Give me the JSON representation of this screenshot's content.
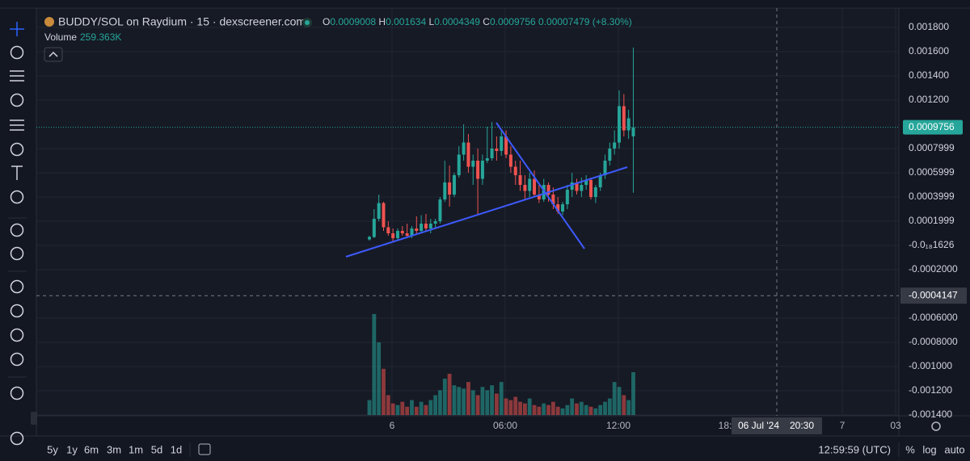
{
  "chart_data": {
    "type": "candlestick",
    "title": "BUDDY/SOL on Raydium · 15 · dexscreener.com",
    "legend_labels": [
      "O",
      "H",
      "L",
      "C"
    ],
    "change": 7.479e-05,
    "change_pct": {
      "value": 8.3,
      "label": "(+8.30%)"
    },
    "up_color": "#26a69a",
    "down_color": "#ef5350",
    "ylim": [
      -0.0014,
      0.0019
    ],
    "yticks": [
      {
        "value": 0.0018,
        "label": "0.001800"
      },
      {
        "value": 0.0016,
        "label": "0.001600"
      },
      {
        "value": 0.0014,
        "label": "0.001400"
      },
      {
        "value": 0.0012,
        "label": "0.001200"
      },
      {
        "value": 0.0007999,
        "label": "0.0007999"
      },
      {
        "value": 0.0005999,
        "label": "0.0005999"
      },
      {
        "value": 0.0003999,
        "label": "0.0003999"
      },
      {
        "value": 0.0001999,
        "label": "0.0001999"
      },
      {
        "value": -1.626e-19,
        "label": "-0.0₁₈1626"
      },
      {
        "value": -0.0002,
        "label": "-0.0002000"
      },
      {
        "value": -0.0006,
        "label": "-0.0006000"
      },
      {
        "value": -0.0008,
        "label": "-0.0008000"
      },
      {
        "value": -0.001,
        "label": "-0.001000"
      },
      {
        "value": -0.0012,
        "label": "-0.001200"
      },
      {
        "value": -0.0014,
        "label": "-0.001400"
      }
    ],
    "xticks": [
      "6",
      "06:00",
      "12:00",
      "18:",
      "7",
      "03"
    ],
    "crosshair": {
      "price": -0.0004147,
      "date": "06 Jul '24",
      "time": "20:30"
    },
    "timeframes": [
      "5y",
      "1y",
      "6m",
      "3m",
      "1m",
      "5d",
      "1d"
    ],
    "clock": "12:59:59 (UTC)",
    "scale_options": [
      "%",
      "log",
      "auto"
    ],
    "volume": {
      "name": "Volume",
      "last_label": "259.363K",
      "values": [
        90,
        612,
        440,
        280,
        120,
        70,
        60,
        80,
        50,
        90,
        50,
        80,
        60,
        90,
        120,
        150,
        220,
        250,
        180,
        170,
        160,
        200,
        150,
        120,
        170,
        150,
        180,
        130,
        200,
        100,
        90,
        110,
        80,
        70,
        100,
        60,
        50,
        70,
        60,
        80,
        50,
        40,
        60,
        100,
        70,
        80,
        60,
        50,
        40,
        60,
        80,
        100,
        200,
        170,
        120,
        90,
        259.363
      ]
    },
    "candles": [
      {
        "o": 5e-05,
        "h": 8e-05,
        "l": 4e-05,
        "c": 7e-05
      },
      {
        "o": 7e-05,
        "h": 0.0003,
        "l": 6e-05,
        "c": 0.00022
      },
      {
        "o": 0.00022,
        "h": 0.00042,
        "l": 0.0002,
        "c": 0.00035
      },
      {
        "o": 0.00035,
        "h": 0.00036,
        "l": 0.00012,
        "c": 0.00015
      },
      {
        "o": 0.00015,
        "h": 0.0002,
        "l": 8e-05,
        "c": 0.0001
      },
      {
        "o": 0.0001,
        "h": 0.00014,
        "l": 3e-05,
        "c": 6e-05
      },
      {
        "o": 6e-05,
        "h": 0.00014,
        "l": 5e-05,
        "c": 0.00012
      },
      {
        "o": 0.00012,
        "h": 0.00016,
        "l": 8e-05,
        "c": 0.0001
      },
      {
        "o": 0.0001,
        "h": 0.00018,
        "l": 6e-05,
        "c": 8e-05
      },
      {
        "o": 8e-05,
        "h": 0.00016,
        "l": 6e-05,
        "c": 0.00014
      },
      {
        "o": 0.00014,
        "h": 0.00024,
        "l": 0.0001,
        "c": 0.00012
      },
      {
        "o": 0.00012,
        "h": 0.00025,
        "l": 0.0001,
        "c": 0.00018
      },
      {
        "o": 0.00018,
        "h": 0.00026,
        "l": 0.00012,
        "c": 0.00014
      },
      {
        "o": 0.00014,
        "h": 0.00022,
        "l": 0.0001,
        "c": 0.00018
      },
      {
        "o": 0.00018,
        "h": 0.00022,
        "l": 0.00014,
        "c": 0.0002
      },
      {
        "o": 0.0002,
        "h": 0.0004,
        "l": 0.00018,
        "c": 0.00038
      },
      {
        "o": 0.00038,
        "h": 0.0007,
        "l": 0.00036,
        "c": 0.00052
      },
      {
        "o": 0.00052,
        "h": 0.00066,
        "l": 0.00032,
        "c": 0.00042
      },
      {
        "o": 0.00042,
        "h": 0.0006,
        "l": 0.0004,
        "c": 0.00058
      },
      {
        "o": 0.00058,
        "h": 0.00082,
        "l": 0.00056,
        "c": 0.00075
      },
      {
        "o": 0.00075,
        "h": 0.001,
        "l": 0.0007,
        "c": 0.00085
      },
      {
        "o": 0.00085,
        "h": 0.00092,
        "l": 0.0006,
        "c": 0.00065
      },
      {
        "o": 0.00065,
        "h": 0.00075,
        "l": 0.0005,
        "c": 0.0007
      },
      {
        "o": 0.0007,
        "h": 0.0008,
        "l": 0.00025,
        "c": 0.00055
      },
      {
        "o": 0.00055,
        "h": 0.00075,
        "l": 0.0005,
        "c": 0.0007
      },
      {
        "o": 0.0007,
        "h": 0.00098,
        "l": 0.00068,
        "c": 0.00072
      },
      {
        "o": 0.00072,
        "h": 0.00102,
        "l": 0.0007,
        "c": 0.0008
      },
      {
        "o": 0.0008,
        "h": 0.0009,
        "l": 0.0007,
        "c": 0.00078
      },
      {
        "o": 0.00078,
        "h": 0.00096,
        "l": 0.00074,
        "c": 0.0009
      },
      {
        "o": 0.0009,
        "h": 0.00095,
        "l": 0.00072,
        "c": 0.00075
      },
      {
        "o": 0.00075,
        "h": 0.00082,
        "l": 0.0006,
        "c": 0.00065
      },
      {
        "o": 0.00065,
        "h": 0.0007,
        "l": 0.0005,
        "c": 0.00058
      },
      {
        "o": 0.00058,
        "h": 0.0007,
        "l": 0.00045,
        "c": 0.0005
      },
      {
        "o": 0.0005,
        "h": 0.00058,
        "l": 0.00038,
        "c": 0.00045
      },
      {
        "o": 0.00045,
        "h": 0.0006,
        "l": 0.0004,
        "c": 0.00055
      },
      {
        "o": 0.00055,
        "h": 0.00062,
        "l": 0.0004,
        "c": 0.00042
      },
      {
        "o": 0.00042,
        "h": 0.0005,
        "l": 0.00035,
        "c": 0.00038
      },
      {
        "o": 0.00038,
        "h": 0.00055,
        "l": 0.00036,
        "c": 0.0005
      },
      {
        "o": 0.0005,
        "h": 0.00052,
        "l": 0.00036,
        "c": 0.00042
      },
      {
        "o": 0.00042,
        "h": 0.00048,
        "l": 0.0003,
        "c": 0.00034
      },
      {
        "o": 0.00034,
        "h": 0.0004,
        "l": 0.00026,
        "c": 0.00028
      },
      {
        "o": 0.00028,
        "h": 0.00036,
        "l": 0.00025,
        "c": 0.00034
      },
      {
        "o": 0.00034,
        "h": 0.0005,
        "l": 0.0003,
        "c": 0.00046
      },
      {
        "o": 0.00046,
        "h": 0.0006,
        "l": 0.0004,
        "c": 0.00052
      },
      {
        "o": 0.00052,
        "h": 0.00055,
        "l": 0.00042,
        "c": 0.00045
      },
      {
        "o": 0.00045,
        "h": 0.00056,
        "l": 0.0004,
        "c": 0.0005
      },
      {
        "o": 0.0005,
        "h": 0.00058,
        "l": 0.00046,
        "c": 0.00054
      },
      {
        "o": 0.00054,
        "h": 0.00056,
        "l": 0.00038,
        "c": 0.0004
      },
      {
        "o": 0.0004,
        "h": 0.0005,
        "l": 0.00035,
        "c": 0.00048
      },
      {
        "o": 0.00048,
        "h": 0.0006,
        "l": 0.00045,
        "c": 0.00058
      },
      {
        "o": 0.00058,
        "h": 0.00075,
        "l": 0.00055,
        "c": 0.0007
      },
      {
        "o": 0.0007,
        "h": 0.00085,
        "l": 0.00066,
        "c": 0.0008
      },
      {
        "o": 0.0008,
        "h": 0.00095,
        "l": 0.00075,
        "c": 0.00085
      },
      {
        "o": 0.00085,
        "h": 0.00128,
        "l": 0.0008,
        "c": 0.00115
      },
      {
        "o": 0.00115,
        "h": 0.00125,
        "l": 0.0009,
        "c": 0.00095
      },
      {
        "o": 0.00095,
        "h": 0.00112,
        "l": 0.00088,
        "c": 0.00105
      },
      {
        "o": 0.0009008,
        "h": 0.001634,
        "l": 0.0004349,
        "c": 0.0009756
      }
    ]
  }
}
